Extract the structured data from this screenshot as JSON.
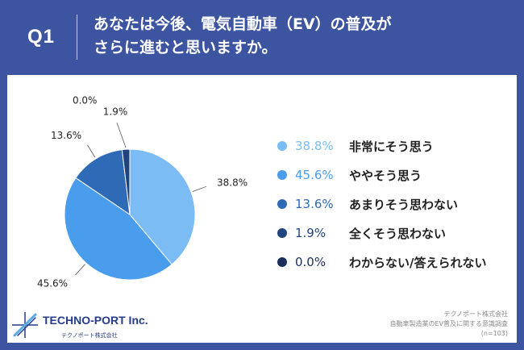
{
  "header": {
    "qlabel": "Q1",
    "question_line1": "あなたは今後、電気自動車（EV）の普及が",
    "question_line2": "さらに進むと思いますか。"
  },
  "chart_data": {
    "type": "pie",
    "categories": [
      "非常にそう思う",
      "ややそう思う",
      "あまりそう思わない",
      "全くそう思わない",
      "わからない/答えられない"
    ],
    "values": [
      38.8,
      45.6,
      13.6,
      1.9,
      0.0
    ],
    "value_labels": [
      "38.8%",
      "45.6%",
      "13.6%",
      "1.9%",
      "0.0%"
    ],
    "colors": [
      "#7bbcf5",
      "#4a9cec",
      "#2e6ab6",
      "#1f4480",
      "#1b2f5e"
    ],
    "legend_position": "right"
  },
  "footer": {
    "logo_name": "TECHNO-PORT Inc.",
    "logo_sub": "テクノポート株式会社",
    "source_line1": "テクノポート株式会社",
    "source_line2": "自動車製造業のEV普及に関する意識調査",
    "source_line3": "(n=103)"
  },
  "colors": {
    "background": "#3d55a0",
    "panel": "#ffffff",
    "logo": "#243c8a"
  }
}
